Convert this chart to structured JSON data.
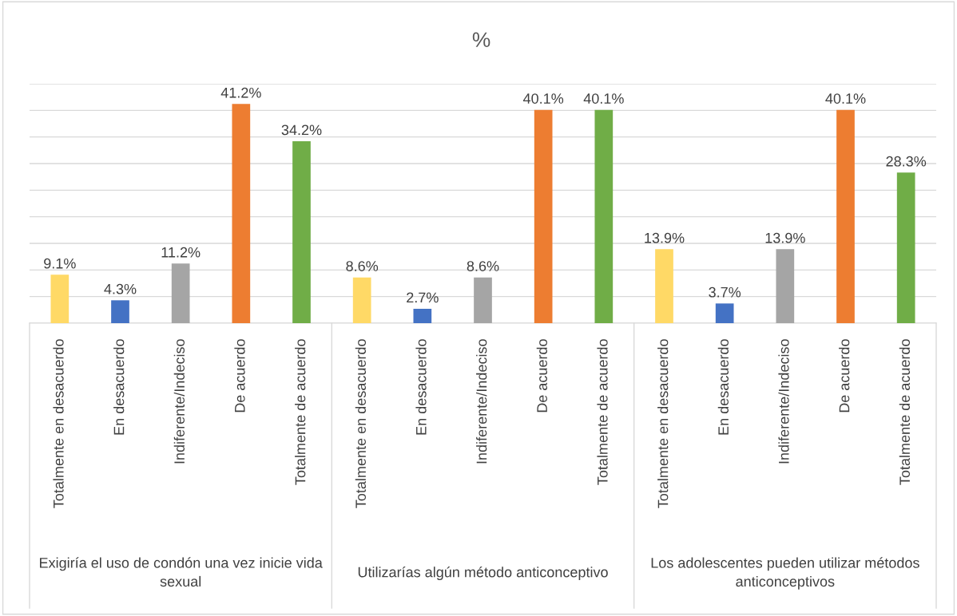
{
  "chart_data": {
    "type": "bar",
    "title": "%",
    "categories": [
      "Totalmente en desacuerdo",
      "En desacuerdo",
      "Indiferente/Indeciso",
      "De acuerdo",
      "Totalmente de acuerdo",
      "Totalmente en desacuerdo",
      "En desacuerdo",
      "Indiferente/Indeciso",
      "De acuerdo",
      "Totalmente de acuerdo",
      "Totalmente en desacuerdo",
      "En desacuerdo",
      "Indiferente/Indeciso",
      "De acuerdo",
      "Totalmente de acuerdo"
    ],
    "values": [
      9.1,
      4.3,
      11.2,
      41.2,
      34.2,
      8.6,
      2.7,
      8.6,
      40.1,
      40.1,
      13.9,
      3.7,
      13.9,
      40.1,
      28.3
    ],
    "value_labels": [
      "9.1%",
      "4.3%",
      "11.2%",
      "41.2%",
      "34.2%",
      "8.6%",
      "2.7%",
      "8.6%",
      "40.1%",
      "40.1%",
      "13.9%",
      "3.7%",
      "13.9%",
      "40.1%",
      "28.3%"
    ],
    "colors": [
      "#ffd966",
      "#4472c4",
      "#a5a5a5",
      "#ed7d31",
      "#70ad47",
      "#ffd966",
      "#4472c4",
      "#a5a5a5",
      "#ed7d31",
      "#70ad47",
      "#ffd966",
      "#4472c4",
      "#a5a5a5",
      "#ed7d31",
      "#70ad47"
    ],
    "annotations": [
      "Exigiría el uso de condón una vez inicie vida sexual",
      "Utilizarías algún método anticonceptivo",
      "Los adolescentes pueden utilizar métodos anticonceptivos"
    ],
    "ylim": [
      0,
      45
    ],
    "yticks": [
      {
        "value": 0,
        "label": null
      },
      {
        "value": 5,
        "label": null
      },
      {
        "value": 10,
        "label": null
      },
      {
        "value": 15,
        "label": null
      },
      {
        "value": 20,
        "label": null
      },
      {
        "value": 25,
        "label": null
      },
      {
        "value": 30,
        "label": null
      },
      {
        "value": 35,
        "label": null
      },
      {
        "value": 40,
        "label": null
      },
      {
        "value": 45,
        "label": null
      }
    ],
    "grid": "y",
    "tick_labels": "x"
  }
}
